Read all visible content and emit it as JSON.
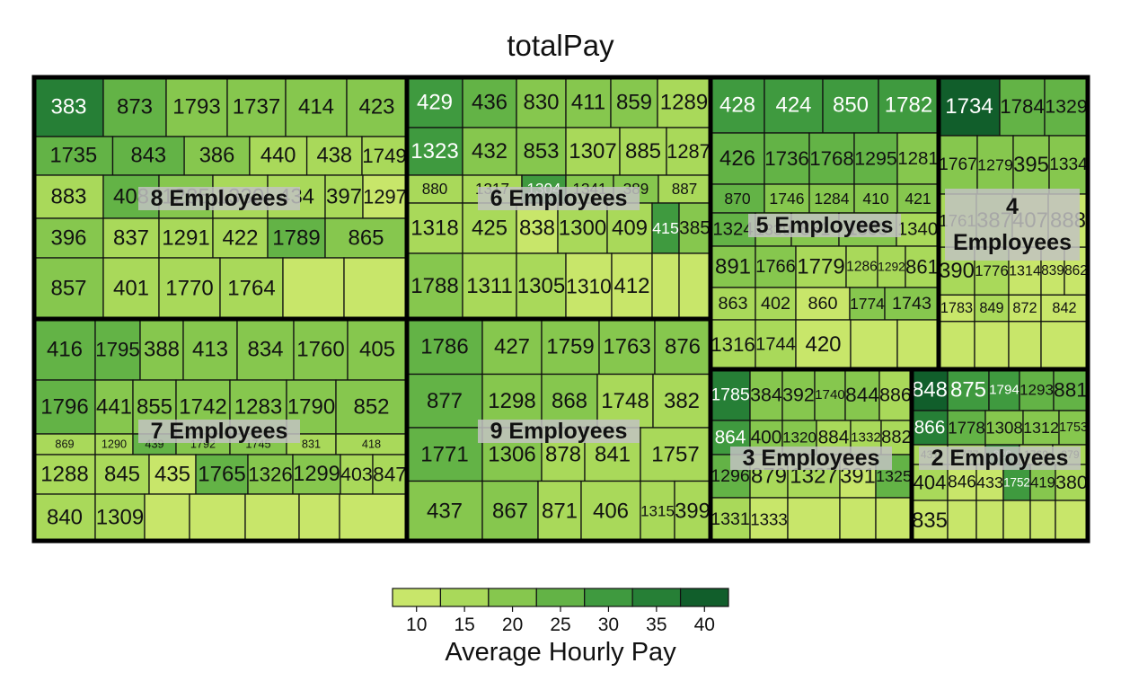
{
  "chart_data": {
    "type": "treemap",
    "title": "totalPay",
    "legend": {
      "title": "Average Hourly Pay",
      "ticks": [
        "10",
        "15",
        "20",
        "25",
        "30",
        "35",
        "40"
      ],
      "colors": [
        "#c8e66a",
        "#a9d95a",
        "#86c74e",
        "#63b346",
        "#3f9a3f",
        "#267f36",
        "#115e2b"
      ]
    },
    "groups": [
      {
        "name": "8 Employees",
        "cells": [
          {
            "label": "383",
            "pay": 33
          },
          {
            "label": "873",
            "pay": 24
          },
          {
            "label": "1793",
            "pay": 21
          },
          {
            "label": "1737",
            "pay": 20
          },
          {
            "label": "414",
            "pay": 20
          },
          {
            "label": "423",
            "pay": 20
          },
          {
            "label": "1735",
            "pay": 27
          },
          {
            "label": "843",
            "pay": 23
          },
          {
            "label": "386",
            "pay": 18
          },
          {
            "label": "440",
            "pay": 16
          },
          {
            "label": "438",
            "pay": 15
          },
          {
            "label": "1749",
            "pay": 15
          },
          {
            "label": "883",
            "pay": 15
          },
          {
            "label": "408",
            "pay": 25
          },
          {
            "label": "1285",
            "pay": 22
          },
          {
            "label": "1330",
            "pay": 16
          },
          {
            "label": "434",
            "pay": 15
          },
          {
            "label": "397",
            "pay": 13
          },
          {
            "label": "1297",
            "pay": 12
          },
          {
            "label": "396",
            "pay": 18
          },
          {
            "label": "837",
            "pay": 16
          },
          {
            "label": "1291",
            "pay": 14
          },
          {
            "label": "422",
            "pay": 13
          },
          {
            "label": "1789",
            "pay": 25
          },
          {
            "label": "865",
            "pay": 22
          },
          {
            "label": "857",
            "pay": 19
          },
          {
            "label": "401",
            "pay": 16
          },
          {
            "label": "1770",
            "pay": 14
          },
          {
            "label": "1764",
            "pay": 13
          }
        ]
      },
      {
        "name": "6 Employees",
        "cells": [
          {
            "label": "429",
            "pay": 31
          },
          {
            "label": "436",
            "pay": 23
          },
          {
            "label": "830",
            "pay": 21
          },
          {
            "label": "411",
            "pay": 20
          },
          {
            "label": "859",
            "pay": 18
          },
          {
            "label": "1289",
            "pay": 15
          },
          {
            "label": "1323",
            "pay": 30
          },
          {
            "label": "432",
            "pay": 22
          },
          {
            "label": "853",
            "pay": 19
          },
          {
            "label": "1307",
            "pay": 17
          },
          {
            "label": "885",
            "pay": 17
          },
          {
            "label": "1287",
            "pay": 15
          },
          {
            "label": "880",
            "pay": 14
          },
          {
            "label": "1317",
            "pay": 13
          },
          {
            "label": "1304",
            "pay": 30
          },
          {
            "label": "1341",
            "pay": 22
          },
          {
            "label": "389",
            "pay": 19
          },
          {
            "label": "887",
            "pay": 17
          },
          {
            "label": "1318",
            "pay": 14
          },
          {
            "label": "425",
            "pay": 13
          },
          {
            "label": "838",
            "pay": 12
          },
          {
            "label": "1300",
            "pay": 16
          },
          {
            "label": "409",
            "pay": 14
          },
          {
            "label": "415",
            "pay": 31
          },
          {
            "label": "385",
            "pay": 21
          },
          {
            "label": "1788",
            "pay": 19
          },
          {
            "label": "1311",
            "pay": 16
          },
          {
            "label": "1305",
            "pay": 14
          },
          {
            "label": "1310",
            "pay": 12
          },
          {
            "label": "412",
            "pay": 11
          }
        ]
      },
      {
        "name": "5 Employees",
        "cells": [
          {
            "label": "428",
            "pay": 30
          },
          {
            "label": "424",
            "pay": 31
          },
          {
            "label": "850",
            "pay": 30
          },
          {
            "label": "1782",
            "pay": 29
          },
          {
            "label": "426",
            "pay": 27
          },
          {
            "label": "1736",
            "pay": 24
          },
          {
            "label": "1768",
            "pay": 23
          },
          {
            "label": "1295",
            "pay": 23
          },
          {
            "label": "1281",
            "pay": 22
          },
          {
            "label": "870",
            "pay": 25
          },
          {
            "label": "1746",
            "pay": 21
          },
          {
            "label": "1284",
            "pay": 21
          },
          {
            "label": "410",
            "pay": 20
          },
          {
            "label": "421",
            "pay": 19
          },
          {
            "label": "1324",
            "pay": 23
          },
          {
            "label": "1339",
            "pay": 20
          },
          {
            "label": "851",
            "pay": 19
          },
          {
            "label": "1303",
            "pay": 18
          },
          {
            "label": "1340",
            "pay": 17
          },
          {
            "label": "891",
            "pay": 22
          },
          {
            "label": "1766",
            "pay": 19
          },
          {
            "label": "1779",
            "pay": 16
          },
          {
            "label": "1286",
            "pay": 14
          },
          {
            "label": "1292",
            "pay": 13
          },
          {
            "label": "861",
            "pay": 13
          },
          {
            "label": "863",
            "pay": 17
          },
          {
            "label": "402",
            "pay": 13
          },
          {
            "label": "860",
            "pay": 12
          },
          {
            "label": "1774",
            "pay": 20
          },
          {
            "label": "1743",
            "pay": 18
          },
          {
            "label": "1316",
            "pay": 15
          },
          {
            "label": "1744",
            "pay": 13
          },
          {
            "label": "420",
            "pay": 12
          }
        ]
      },
      {
        "name": "4 Employees",
        "cells": [
          {
            "label": "1734",
            "pay": 38
          },
          {
            "label": "1784",
            "pay": 26
          },
          {
            "label": "1329",
            "pay": 24
          },
          {
            "label": "1767",
            "pay": 22
          },
          {
            "label": "1279",
            "pay": 21
          },
          {
            "label": "395",
            "pay": 20
          },
          {
            "label": "1334",
            "pay": 19
          },
          {
            "label": "1761",
            "pay": 14
          },
          {
            "label": "387",
            "pay": 13
          },
          {
            "label": "407",
            "pay": 12
          },
          {
            "label": "888",
            "pay": 12
          },
          {
            "label": "390",
            "pay": 14
          },
          {
            "label": "1776",
            "pay": 13
          },
          {
            "label": "1314",
            "pay": 12
          },
          {
            "label": "839",
            "pay": 11
          },
          {
            "label": "862",
            "pay": 11
          },
          {
            "label": "1783",
            "pay": 11
          },
          {
            "label": "849",
            "pay": 13
          },
          {
            "label": "872",
            "pay": 12
          },
          {
            "label": "842",
            "pay": 11
          }
        ]
      },
      {
        "name": "9 Employees",
        "cells": [
          {
            "label": "1786",
            "pay": 26
          },
          {
            "label": "427",
            "pay": 22
          },
          {
            "label": "1759",
            "pay": 20
          },
          {
            "label": "1763",
            "pay": 19
          },
          {
            "label": "876",
            "pay": 19
          },
          {
            "label": "877",
            "pay": 24
          },
          {
            "label": "1298",
            "pay": 20
          },
          {
            "label": "868",
            "pay": 18
          },
          {
            "label": "1748",
            "pay": 17
          },
          {
            "label": "382",
            "pay": 17
          },
          {
            "label": "1771",
            "pay": 23
          },
          {
            "label": "1306",
            "pay": 19
          },
          {
            "label": "878",
            "pay": 17
          },
          {
            "label": "841",
            "pay": 15
          },
          {
            "label": "1757",
            "pay": 15
          },
          {
            "label": "437",
            "pay": 22
          },
          {
            "label": "867",
            "pay": 18
          },
          {
            "label": "871",
            "pay": 16
          },
          {
            "label": "406",
            "pay": 14
          },
          {
            "label": "1315",
            "pay": 14
          },
          {
            "label": "399",
            "pay": 13
          }
        ]
      },
      {
        "name": "7 Employees",
        "cells": [
          {
            "label": "416",
            "pay": 27
          },
          {
            "label": "1795",
            "pay": 23
          },
          {
            "label": "388",
            "pay": 22
          },
          {
            "label": "413",
            "pay": 21
          },
          {
            "label": "834",
            "pay": 21
          },
          {
            "label": "1760",
            "pay": 20
          },
          {
            "label": "405",
            "pay": 20
          },
          {
            "label": "1796",
            "pay": 25
          },
          {
            "label": "441",
            "pay": 21
          },
          {
            "label": "855",
            "pay": 20
          },
          {
            "label": "1742",
            "pay": 19
          },
          {
            "label": "1283",
            "pay": 19
          },
          {
            "label": "1790",
            "pay": 18
          },
          {
            "label": "852",
            "pay": 18
          },
          {
            "label": "869",
            "pay": 16
          },
          {
            "label": "1290",
            "pay": 15
          },
          {
            "label": "439",
            "pay": 24
          },
          {
            "label": "1792",
            "pay": 20
          },
          {
            "label": "1745",
            "pay": 19
          },
          {
            "label": "831",
            "pay": 17
          },
          {
            "label": "418",
            "pay": 16
          },
          {
            "label": "1288",
            "pay": 14
          },
          {
            "label": "845",
            "pay": 13
          },
          {
            "label": "435",
            "pay": 12
          },
          {
            "label": "1765",
            "pay": 23
          },
          {
            "label": "1326",
            "pay": 20
          },
          {
            "label": "1299",
            "pay": 19
          },
          {
            "label": "403",
            "pay": 17
          },
          {
            "label": "847",
            "pay": 15
          },
          {
            "label": "840",
            "pay": 14
          },
          {
            "label": "1309",
            "pay": 13
          }
        ]
      },
      {
        "name": "3 Employees",
        "cells": [
          {
            "label": "1785",
            "pay": 33
          },
          {
            "label": "384",
            "pay": 21
          },
          {
            "label": "392",
            "pay": 20
          },
          {
            "label": "1740",
            "pay": 18
          },
          {
            "label": "844",
            "pay": 18
          },
          {
            "label": "886",
            "pay": 17
          },
          {
            "label": "864",
            "pay": 31
          },
          {
            "label": "400",
            "pay": 19
          },
          {
            "label": "1320",
            "pay": 18
          },
          {
            "label": "884",
            "pay": 17
          },
          {
            "label": "1332",
            "pay": 16
          },
          {
            "label": "882",
            "pay": 16
          },
          {
            "label": "1296",
            "pay": 26
          },
          {
            "label": "879",
            "pay": 16
          },
          {
            "label": "1327",
            "pay": 13
          },
          {
            "label": "391",
            "pay": 12
          },
          {
            "label": "1325",
            "pay": 25
          },
          {
            "label": "1331",
            "pay": 14
          },
          {
            "label": "1333",
            "pay": 12
          }
        ]
      },
      {
        "name": "2 Employees",
        "cells": [
          {
            "label": "848",
            "pay": 38
          },
          {
            "label": "875",
            "pay": 29
          },
          {
            "label": "1794",
            "pay": 28
          },
          {
            "label": "1293",
            "pay": 26
          },
          {
            "label": "881",
            "pay": 26
          },
          {
            "label": "866",
            "pay": 33
          },
          {
            "label": "1778",
            "pay": 23
          },
          {
            "label": "1308",
            "pay": 22
          },
          {
            "label": "1312",
            "pay": 22
          },
          {
            "label": "1753",
            "pay": 21
          },
          {
            "label": "431",
            "pay": 13
          },
          {
            "label": "1777",
            "pay": 13
          },
          {
            "label": "829",
            "pay": 31
          },
          {
            "label": "1769",
            "pay": 15
          },
          {
            "label": "379",
            "pay": 14
          },
          {
            "label": "404",
            "pay": 13
          },
          {
            "label": "846",
            "pay": 12
          },
          {
            "label": "433",
            "pay": 12
          },
          {
            "label": "1752",
            "pay": 30
          },
          {
            "label": "419",
            "pay": 20
          },
          {
            "label": "380",
            "pay": 13
          },
          {
            "label": "835",
            "pay": 12
          }
        ]
      }
    ]
  }
}
